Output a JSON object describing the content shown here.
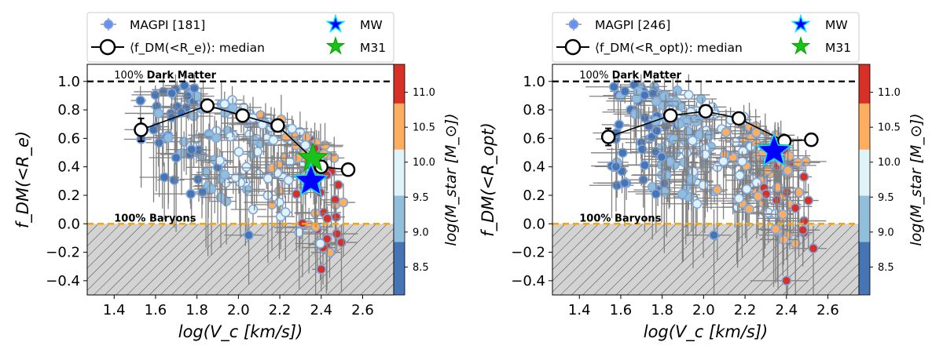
{
  "figure": {
    "colorbar_label": "log(M_star [M_⊙])",
    "colorbar_ticks": [
      "8.5",
      "9.0",
      "9.5",
      "10.0",
      "10.5",
      "11.0"
    ],
    "colorbar_colors": [
      "#4575b4",
      "#91bfdb",
      "#e0f3f8",
      "#fdae61",
      "#d73027"
    ],
    "hatch_color": "#d3d3d3",
    "dm_line_color": "#000000",
    "baryon_line_color": "#ffa500"
  },
  "chart_data": [
    {
      "type": "scatter",
      "title": "",
      "xlabel": "log(V_c [km/s])",
      "ylabel": "f_DM(<R_e)",
      "xlim": [
        1.27,
        2.75
      ],
      "ylim": [
        -0.5,
        1.12
      ],
      "x_ticks": [
        1.4,
        1.6,
        1.8,
        2.0,
        2.2,
        2.4,
        2.6
      ],
      "y_ticks": [
        -0.4,
        -0.2,
        0.0,
        0.2,
        0.4,
        0.6,
        0.8,
        1.0
      ],
      "dm_label_prefix": "100% ",
      "dm_label_bold": "Dark Matter",
      "baryon_label": "100% Baryons",
      "legend": {
        "magpi": "MAGPI [181]",
        "median": "⟨f_DM(<R_e)⟩: median",
        "mw": "MW",
        "m31": "M31"
      },
      "median": {
        "x": [
          1.53,
          1.85,
          2.02,
          2.19,
          2.4,
          2.53
        ],
        "y": [
          0.66,
          0.83,
          0.76,
          0.69,
          0.4,
          0.38
        ],
        "yerr": [
          0.08,
          0.03,
          0.03,
          0.03,
          0.04,
          0.03
        ]
      },
      "mw": {
        "x": 2.35,
        "y": 0.3
      },
      "m31": {
        "x": 2.36,
        "y": 0.46
      },
      "scatter_seed": 7,
      "scatter_count": 181
    },
    {
      "type": "scatter",
      "title": "",
      "xlabel": "log(V_c [km/s])",
      "ylabel": "f_DM(<R_opt)",
      "xlim": [
        1.27,
        2.75
      ],
      "ylim": [
        -0.5,
        1.12
      ],
      "x_ticks": [
        1.4,
        1.6,
        1.8,
        2.0,
        2.2,
        2.4,
        2.6
      ],
      "y_ticks": [
        -0.4,
        -0.2,
        0.0,
        0.2,
        0.4,
        0.6,
        0.8,
        1.0
      ],
      "dm_label_prefix": "100% ",
      "dm_label_bold": "Dark Matter",
      "baryon_label": "100% Baryons",
      "legend": {
        "magpi": "MAGPI [246]",
        "median": "⟨f_DM(<R_opt)⟩: median",
        "mw": "MW",
        "m31": "M31"
      },
      "median": {
        "x": [
          1.54,
          1.84,
          2.01,
          2.17,
          2.39,
          2.52
        ],
        "y": [
          0.61,
          0.76,
          0.79,
          0.74,
          0.58,
          0.59
        ],
        "yerr": [
          0.06,
          0.03,
          0.03,
          0.03,
          0.03,
          0.03
        ]
      },
      "mw": {
        "x": 2.34,
        "y": 0.51
      },
      "m31": {
        "x": 2.34,
        "y": 0.52
      },
      "scatter_seed": 19,
      "scatter_count": 246
    }
  ]
}
